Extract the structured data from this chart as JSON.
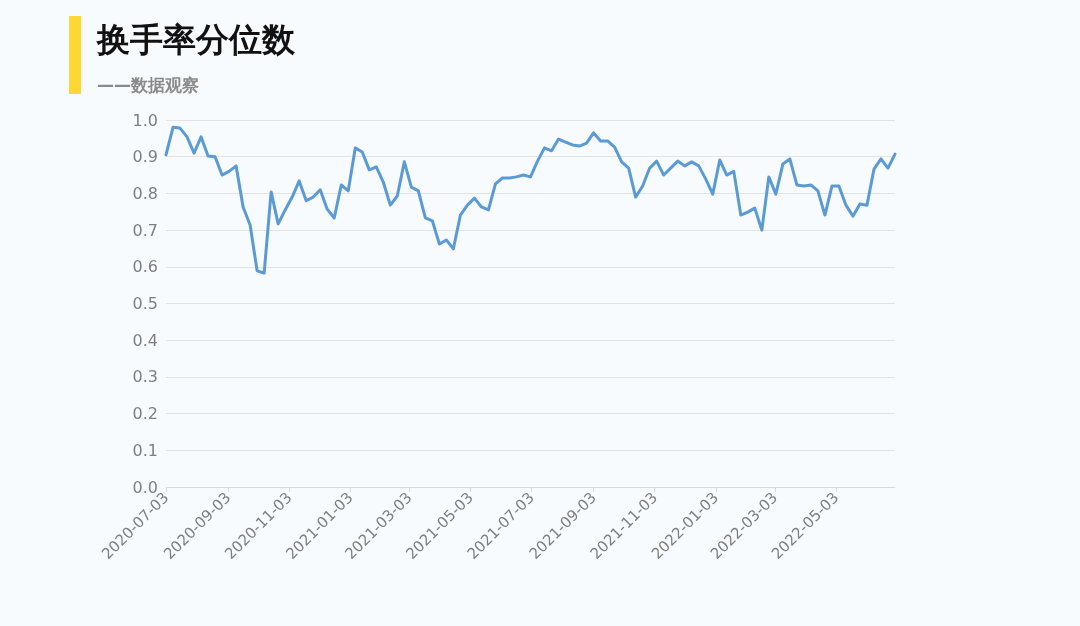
{
  "chart_data": {
    "type": "line",
    "title": "换手率分位数",
    "subtitle": "——数据观察",
    "x": [
      "2020-07-03",
      "2020-07-10",
      "2020-07-17",
      "2020-07-24",
      "2020-07-31",
      "2020-08-07",
      "2020-08-14",
      "2020-08-21",
      "2020-08-28",
      "2020-09-04",
      "2020-09-11",
      "2020-09-18",
      "2020-09-25",
      "2020-10-02",
      "2020-10-09",
      "2020-10-16",
      "2020-10-23",
      "2020-10-30",
      "2020-11-06",
      "2020-11-13",
      "2020-11-20",
      "2020-11-27",
      "2020-12-04",
      "2020-12-11",
      "2020-12-18",
      "2020-12-25",
      "2021-01-01",
      "2021-01-08",
      "2021-01-15",
      "2021-01-22",
      "2021-01-29",
      "2021-02-05",
      "2021-02-12",
      "2021-02-19",
      "2021-02-26",
      "2021-03-05",
      "2021-03-12",
      "2021-03-19",
      "2021-03-26",
      "2021-04-02",
      "2021-04-09",
      "2021-04-16",
      "2021-04-23",
      "2021-04-30",
      "2021-05-07",
      "2021-05-14",
      "2021-05-21",
      "2021-05-28",
      "2021-06-04",
      "2021-06-11",
      "2021-06-18",
      "2021-06-25",
      "2021-07-02",
      "2021-07-09",
      "2021-07-16",
      "2021-07-23",
      "2021-07-30",
      "2021-08-06",
      "2021-08-13",
      "2021-08-20",
      "2021-08-27",
      "2021-09-03",
      "2021-09-10",
      "2021-09-17",
      "2021-09-24",
      "2021-10-01",
      "2021-10-08",
      "2021-10-15",
      "2021-10-22",
      "2021-10-29",
      "2021-11-05",
      "2021-11-12",
      "2021-11-19",
      "2021-11-26",
      "2021-12-03",
      "2021-12-10",
      "2021-12-17",
      "2021-12-24",
      "2021-12-31",
      "2022-01-07",
      "2022-01-14",
      "2022-01-21",
      "2022-01-28",
      "2022-02-04",
      "2022-02-11",
      "2022-02-18",
      "2022-02-25",
      "2022-03-04",
      "2022-03-11",
      "2022-03-18",
      "2022-03-25",
      "2022-04-01",
      "2022-04-08",
      "2022-04-15",
      "2022-04-22",
      "2022-04-29",
      "2022-05-06",
      "2022-05-13",
      "2022-05-20",
      "2022-05-27",
      "2022-06-03",
      "2022-06-10",
      "2022-06-17",
      "2022-06-24",
      "2022-07-01"
    ],
    "series": [
      {
        "color": "#5b9bd5",
        "values": [
          0.905,
          0.98,
          0.978,
          0.954,
          0.91,
          0.954,
          0.902,
          0.9,
          0.85,
          0.86,
          0.875,
          0.763,
          0.714,
          0.589,
          0.583,
          0.804,
          0.717,
          0.755,
          0.79,
          0.834,
          0.78,
          0.79,
          0.81,
          0.757,
          0.733,
          0.823,
          0.807,
          0.924,
          0.913,
          0.864,
          0.872,
          0.831,
          0.768,
          0.793,
          0.886,
          0.817,
          0.807,
          0.733,
          0.725,
          0.662,
          0.673,
          0.649,
          0.741,
          0.768,
          0.787,
          0.763,
          0.755,
          0.826,
          0.842,
          0.842,
          0.845,
          0.85,
          0.845,
          0.888,
          0.924,
          0.916,
          0.948,
          0.94,
          0.932,
          0.929,
          0.937,
          0.965,
          0.943,
          0.943,
          0.926,
          0.886,
          0.869,
          0.79,
          0.82,
          0.869,
          0.888,
          0.85,
          0.869,
          0.888,
          0.875,
          0.886,
          0.875,
          0.839,
          0.798,
          0.891,
          0.85,
          0.86,
          0.741,
          0.749,
          0.76,
          0.7,
          0.845,
          0.798,
          0.88,
          0.894,
          0.823,
          0.82,
          0.823,
          0.807,
          0.741,
          0.82,
          0.82,
          0.768,
          0.738,
          0.771,
          0.768,
          0.866,
          0.894,
          0.869,
          0.907
        ]
      }
    ],
    "xlim": [
      "2020-07-03",
      "2022-07-01"
    ],
    "xticks": [
      "2020-07-03",
      "2020-09-03",
      "2020-11-03",
      "2021-01-03",
      "2021-03-03",
      "2021-05-03",
      "2021-07-03",
      "2021-09-03",
      "2021-11-03",
      "2022-01-03",
      "2022-03-03",
      "2022-05-03"
    ],
    "ylim": [
      0,
      1
    ],
    "yticks": [
      {
        "value": 0,
        "label": "0.0"
      },
      {
        "value": 0.1,
        "label": "0.1"
      },
      {
        "value": 0.2,
        "label": "0.2"
      },
      {
        "value": 0.3,
        "label": "0.3"
      },
      {
        "value": 0.4,
        "label": "0.4"
      },
      {
        "value": 0.5,
        "label": "0.5"
      },
      {
        "value": 0.6,
        "label": "0.6"
      },
      {
        "value": 0.7,
        "label": "0.7"
      },
      {
        "value": 0.8,
        "label": "0.8"
      },
      {
        "value": 0.9,
        "label": "0.9"
      },
      {
        "value": 1,
        "label": "1.0"
      }
    ],
    "grid": "y",
    "marker": "none",
    "line_style": "solid"
  }
}
